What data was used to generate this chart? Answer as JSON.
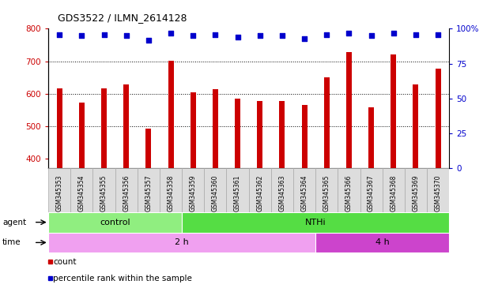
{
  "title": "GDS3522 / ILMN_2614128",
  "samples": [
    "GSM345353",
    "GSM345354",
    "GSM345355",
    "GSM345356",
    "GSM345357",
    "GSM345358",
    "GSM345359",
    "GSM345360",
    "GSM345361",
    "GSM345362",
    "GSM345363",
    "GSM345364",
    "GSM345365",
    "GSM345366",
    "GSM345367",
    "GSM345368",
    "GSM345369",
    "GSM345370"
  ],
  "counts": [
    615,
    572,
    615,
    628,
    493,
    702,
    605,
    614,
    585,
    576,
    576,
    566,
    650,
    727,
    557,
    722,
    628,
    678
  ],
  "percentile_ranks": [
    96,
    95,
    96,
    95,
    92,
    97,
    95,
    96,
    94,
    95,
    95,
    93,
    96,
    97,
    95,
    97,
    96,
    96
  ],
  "bar_color": "#cc0000",
  "dot_color": "#0000cc",
  "ylim_left": [
    370,
    800
  ],
  "ylim_right": [
    0,
    100
  ],
  "yticks_left": [
    400,
    500,
    600,
    700,
    800
  ],
  "yticks_right": [
    0,
    25,
    50,
    75,
    100
  ],
  "agent_groups": [
    {
      "label": "control",
      "start": 0,
      "end": 6,
      "color": "#90ee80"
    },
    {
      "label": "NTHi",
      "start": 6,
      "end": 18,
      "color": "#55dd44"
    }
  ],
  "time_groups": [
    {
      "label": "2 h",
      "start": 0,
      "end": 12,
      "color": "#f0a0f0"
    },
    {
      "label": "4 h",
      "start": 12,
      "end": 18,
      "color": "#cc44cc"
    }
  ],
  "legend_items": [
    {
      "label": "count",
      "color": "#cc0000"
    },
    {
      "label": "percentile rank within the sample",
      "color": "#0000cc"
    }
  ],
  "background_color": "#ffffff",
  "plot_bg_color": "#ffffff",
  "grid_color": "#000000",
  "bar_width": 0.25,
  "dot_size": 18,
  "tick_label_bg": "#dddddd",
  "tick_label_box_color": "#aaaaaa"
}
